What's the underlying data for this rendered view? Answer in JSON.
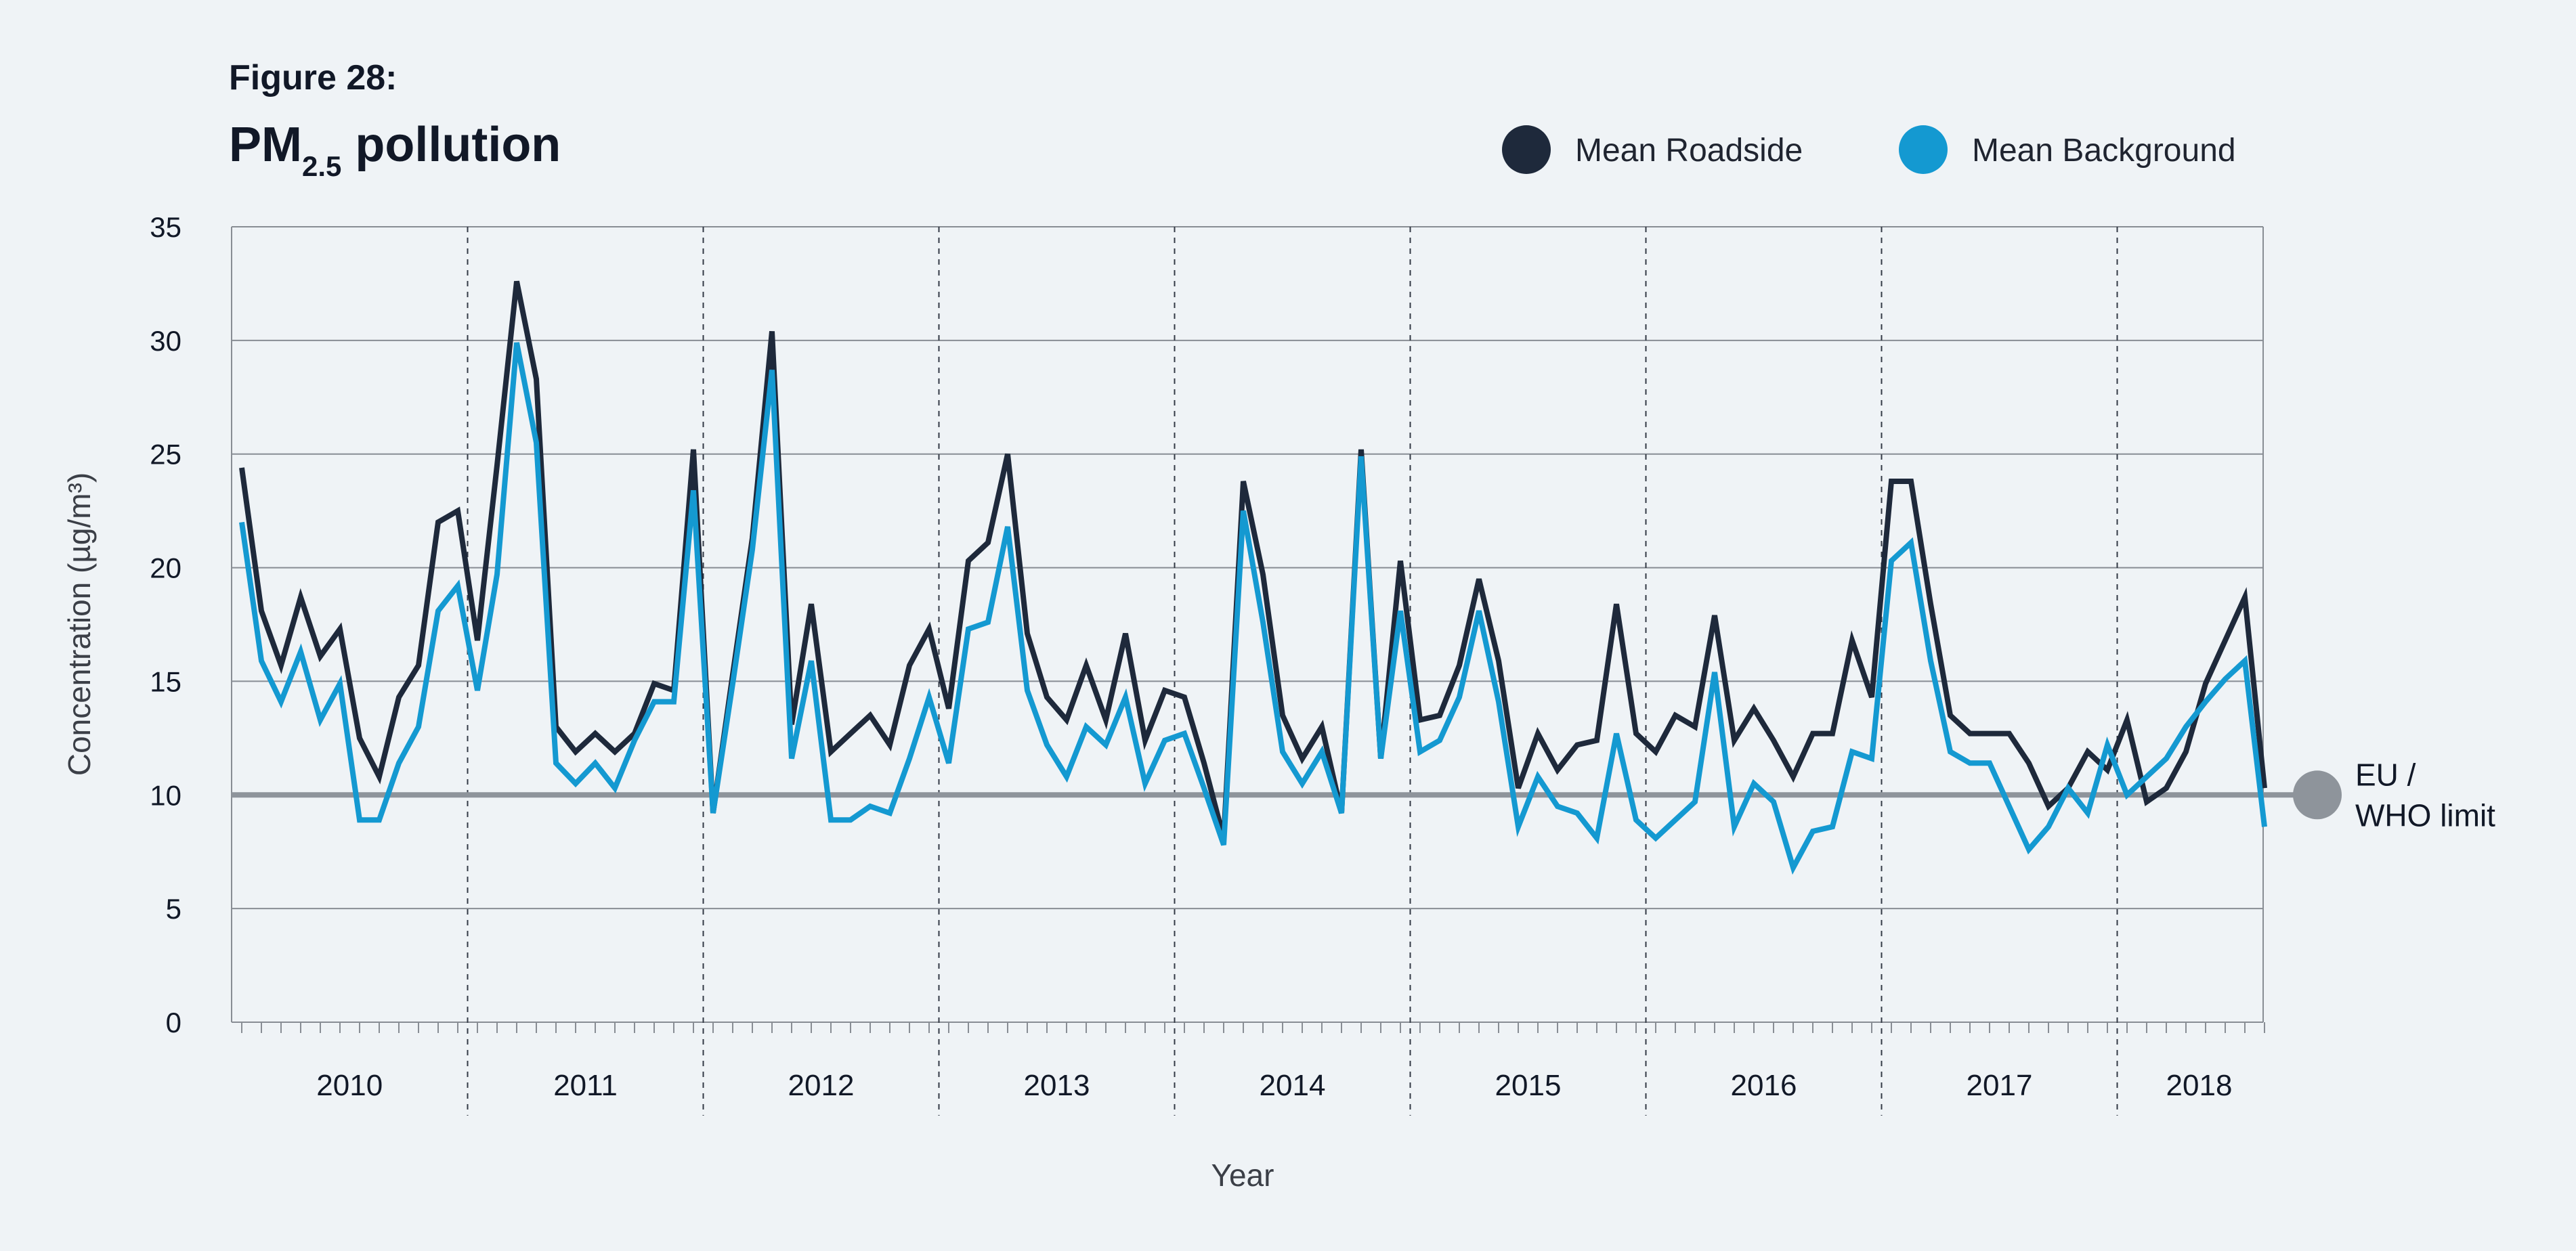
{
  "figure_label": "Figure 28:",
  "title": {
    "main": "PM",
    "sub": "2.5",
    "rest": " pollution"
  },
  "colors": {
    "roadside": "#1e293b",
    "background": "#1499d1",
    "limit": "#8e949b",
    "grid": "#888d94"
  },
  "chart_data": {
    "type": "line",
    "xlabel": "Year",
    "ylabel": "Concentration (µg/m³)",
    "ylim": [
      0,
      35
    ],
    "yticks": [
      0,
      5,
      10,
      15,
      20,
      25,
      30,
      35
    ],
    "x_start": "2010-01",
    "x_unit": "month",
    "years": [
      "2010",
      "2011",
      "2012",
      "2013",
      "2014",
      "2015",
      "2016",
      "2017",
      "2018"
    ],
    "series": [
      {
        "name": "Mean Roadside",
        "color": "#1e293b",
        "values": [
          24.4,
          18.1,
          15.7,
          18.7,
          16.1,
          17.3,
          12.5,
          10.8,
          14.3,
          15.7,
          22.0,
          22.5,
          16.8,
          24.5,
          32.6,
          28.3,
          13.0,
          11.9,
          12.7,
          11.9,
          12.7,
          14.9,
          14.6,
          25.2,
          9.2,
          15.3,
          21.3,
          30.4,
          13.1,
          18.4,
          11.9,
          12.7,
          13.5,
          12.2,
          15.7,
          17.3,
          13.8,
          20.3,
          21.1,
          25.0,
          17.1,
          14.3,
          13.3,
          15.7,
          13.3,
          17.1,
          12.4,
          14.6,
          14.3,
          11.4,
          8.1,
          23.8,
          19.7,
          13.5,
          11.6,
          13.0,
          9.2,
          25.2,
          11.6,
          20.3,
          13.3,
          13.5,
          15.7,
          19.5,
          15.9,
          10.3,
          12.7,
          11.1,
          12.2,
          12.4,
          18.4,
          12.7,
          11.9,
          13.5,
          13.0,
          17.9,
          12.4,
          13.8,
          12.4,
          10.8,
          12.7,
          12.7,
          16.8,
          14.3,
          23.8,
          23.8,
          18.4,
          13.5,
          12.7,
          12.7,
          12.7,
          11.4,
          9.5,
          10.3,
          11.9,
          11.1,
          13.3,
          9.7,
          10.3,
          11.9,
          14.9,
          16.8,
          18.7,
          10.3
        ]
      },
      {
        "name": "Mean Background",
        "color": "#1499d1",
        "values": [
          22.0,
          15.9,
          14.1,
          16.3,
          13.3,
          14.9,
          8.9,
          8.9,
          11.4,
          13.0,
          18.1,
          19.2,
          14.6,
          19.7,
          29.9,
          25.5,
          11.4,
          10.5,
          11.4,
          10.3,
          12.4,
          14.1,
          14.1,
          23.4,
          9.2,
          14.9,
          20.8,
          28.7,
          11.6,
          15.9,
          8.9,
          8.9,
          9.5,
          9.2,
          11.6,
          14.3,
          11.4,
          17.3,
          17.6,
          21.8,
          14.6,
          12.2,
          10.8,
          13.0,
          12.2,
          14.3,
          10.5,
          12.4,
          12.7,
          10.3,
          7.8,
          22.5,
          17.6,
          11.9,
          10.5,
          11.9,
          9.2,
          24.9,
          11.6,
          18.1,
          11.9,
          12.4,
          14.3,
          18.1,
          14.1,
          8.6,
          10.8,
          9.5,
          9.2,
          8.1,
          12.7,
          8.9,
          8.1,
          8.9,
          9.7,
          15.4,
          8.6,
          10.5,
          9.7,
          6.8,
          8.4,
          8.6,
          11.9,
          11.6,
          20.3,
          21.1,
          15.9,
          11.9,
          11.4,
          11.4,
          9.5,
          7.6,
          8.6,
          10.3,
          9.2,
          12.2,
          10.0,
          10.8,
          11.6,
          13.0,
          14.1,
          15.1,
          15.9,
          8.6
        ]
      }
    ],
    "reference_line": {
      "value": 10,
      "label_line1": "EU /",
      "label_line2": "WHO limit"
    }
  }
}
